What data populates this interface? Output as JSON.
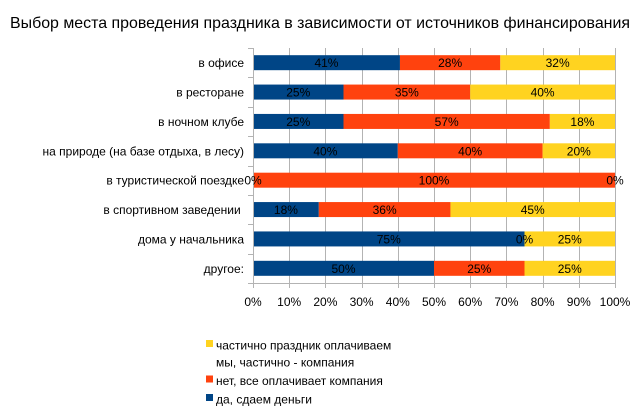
{
  "chart_data": {
    "type": "bar",
    "orientation": "horizontal",
    "stacking": "percent",
    "title": "Выбор места проведения праздника в зависимости от источников финансирования",
    "xlabel": "",
    "ylabel": "",
    "xlim": [
      0,
      100
    ],
    "grid": "vertical gridlines on",
    "categories": [
      "в офисе",
      "в ресторане",
      "в ночном клубе",
      "на природе (на базе отдыха, в лесу)",
      "в туристической поездке",
      "в спортивном заведении ",
      "дома у начальника",
      "другое:"
    ],
    "series": [
      {
        "name": "да, сдаем деньги",
        "color": "#004586",
        "values": [
          41,
          25,
          25,
          40,
          0,
          18,
          75,
          50
        ],
        "labels": [
          "41%",
          "25%",
          "25%",
          "40%",
          "0%",
          "18%",
          "75%",
          "50%"
        ]
      },
      {
        "name": "нет, все оплачивает компания",
        "color": "#FF420E",
        "values": [
          28,
          35,
          57,
          40,
          100,
          36,
          0,
          25
        ],
        "labels": [
          "28%",
          "35%",
          "57%",
          "40%",
          "100%",
          "36%",
          "0%",
          "25%"
        ]
      },
      {
        "name": "частично праздник оплачиваем мы, частично - компания",
        "color": "#FFD320",
        "values": [
          32,
          40,
          18,
          20,
          0,
          45,
          25,
          25
        ],
        "labels": [
          "32%",
          "40%",
          "18%",
          "20%",
          "0%",
          "45%",
          "25%",
          "25%"
        ]
      }
    ],
    "x_ticks": [
      0,
      10,
      20,
      30,
      40,
      50,
      60,
      70,
      80,
      90,
      100
    ],
    "x_tick_labels": [
      "0%",
      "10%",
      "20%",
      "30%",
      "40%",
      "50%",
      "60%",
      "70%",
      "80%",
      "90%",
      "100%"
    ],
    "legend": {
      "position": "bottom-left",
      "items": [
        {
          "series": 2,
          "lines": [
            "частично праздник оплачиваем",
            "мы, частично - компания"
          ],
          "color": "#FFD320"
        },
        {
          "series": 1,
          "lines": [
            "нет, все оплачивает компания"
          ],
          "color": "#FF420E"
        },
        {
          "series": 0,
          "lines": [
            "да, сдаем деньги"
          ],
          "color": "#004586"
        }
      ]
    }
  }
}
